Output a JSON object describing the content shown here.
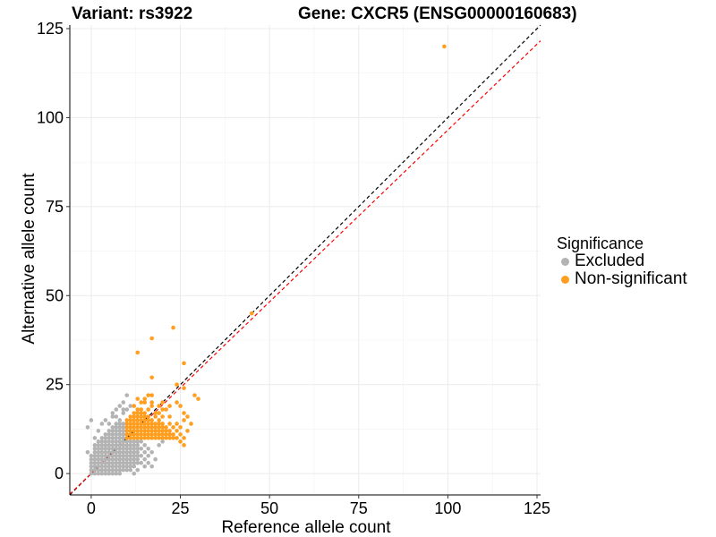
{
  "header": {
    "variant_title": "Variant: rs3922",
    "gene_title": "Gene: CXCR5 (ENSG00000160683)"
  },
  "legend": {
    "title": "Significance",
    "items": [
      {
        "label": "Excluded",
        "color": "#b3b3b3"
      },
      {
        "label": "Non-significant",
        "color": "#ff9e1f"
      }
    ]
  },
  "chart_data": {
    "type": "scatter",
    "xlabel": "Reference allele count",
    "ylabel": "Alternative allele count",
    "xlim": [
      -6,
      126
    ],
    "ylim": [
      -6,
      126
    ],
    "xticks": [
      0,
      25,
      50,
      75,
      100,
      125
    ],
    "yticks": [
      0,
      25,
      50,
      75,
      100,
      125
    ],
    "grid": true,
    "legend_position": "right",
    "reference_lines": [
      {
        "name": "identity",
        "slope": 1,
        "color": "#000000",
        "style": "dashed"
      },
      {
        "name": "fit",
        "slope": 0.965,
        "color": "#ff0000",
        "style": "dashed"
      }
    ],
    "series": [
      {
        "name": "Excluded",
        "color": "#b3b3b3",
        "points": [
          [
            0,
            0
          ],
          [
            0,
            1
          ],
          [
            0,
            2
          ],
          [
            0,
            3
          ],
          [
            0,
            4
          ],
          [
            0,
            5
          ],
          [
            1,
            0
          ],
          [
            1,
            1
          ],
          [
            1,
            2
          ],
          [
            1,
            3
          ],
          [
            1,
            4
          ],
          [
            1,
            5
          ],
          [
            1,
            6
          ],
          [
            1,
            7
          ],
          [
            1,
            8
          ],
          [
            2,
            0
          ],
          [
            2,
            1
          ],
          [
            2,
            2
          ],
          [
            2,
            3
          ],
          [
            2,
            4
          ],
          [
            2,
            5
          ],
          [
            2,
            6
          ],
          [
            2,
            7
          ],
          [
            2,
            8
          ],
          [
            2,
            9
          ],
          [
            3,
            0
          ],
          [
            3,
            1
          ],
          [
            3,
            2
          ],
          [
            3,
            3
          ],
          [
            3,
            4
          ],
          [
            3,
            5
          ],
          [
            3,
            6
          ],
          [
            3,
            7
          ],
          [
            3,
            8
          ],
          [
            3,
            9
          ],
          [
            3,
            10
          ],
          [
            4,
            0
          ],
          [
            4,
            1
          ],
          [
            4,
            2
          ],
          [
            4,
            3
          ],
          [
            4,
            4
          ],
          [
            4,
            5
          ],
          [
            4,
            6
          ],
          [
            4,
            7
          ],
          [
            4,
            8
          ],
          [
            4,
            9
          ],
          [
            4,
            10
          ],
          [
            4,
            11
          ],
          [
            5,
            0
          ],
          [
            5,
            1
          ],
          [
            5,
            2
          ],
          [
            5,
            3
          ],
          [
            5,
            4
          ],
          [
            5,
            5
          ],
          [
            5,
            6
          ],
          [
            5,
            7
          ],
          [
            5,
            8
          ],
          [
            5,
            9
          ],
          [
            5,
            10
          ],
          [
            5,
            11
          ],
          [
            5,
            12
          ],
          [
            6,
            0
          ],
          [
            6,
            1
          ],
          [
            6,
            2
          ],
          [
            6,
            3
          ],
          [
            6,
            4
          ],
          [
            6,
            5
          ],
          [
            6,
            6
          ],
          [
            6,
            7
          ],
          [
            6,
            8
          ],
          [
            6,
            9
          ],
          [
            6,
            10
          ],
          [
            6,
            11
          ],
          [
            6,
            12
          ],
          [
            6,
            13
          ],
          [
            7,
            0
          ],
          [
            7,
            1
          ],
          [
            7,
            2
          ],
          [
            7,
            3
          ],
          [
            7,
            4
          ],
          [
            7,
            5
          ],
          [
            7,
            6
          ],
          [
            7,
            7
          ],
          [
            7,
            8
          ],
          [
            7,
            9
          ],
          [
            7,
            10
          ],
          [
            7,
            11
          ],
          [
            7,
            12
          ],
          [
            7,
            13
          ],
          [
            7,
            14
          ],
          [
            8,
            0
          ],
          [
            8,
            1
          ],
          [
            8,
            2
          ],
          [
            8,
            3
          ],
          [
            8,
            4
          ],
          [
            8,
            5
          ],
          [
            8,
            6
          ],
          [
            8,
            7
          ],
          [
            8,
            8
          ],
          [
            8,
            9
          ],
          [
            8,
            10
          ],
          [
            8,
            11
          ],
          [
            8,
            12
          ],
          [
            8,
            13
          ],
          [
            8,
            14
          ],
          [
            8,
            15
          ],
          [
            9,
            1
          ],
          [
            9,
            2
          ],
          [
            9,
            3
          ],
          [
            9,
            4
          ],
          [
            9,
            5
          ],
          [
            9,
            6
          ],
          [
            9,
            7
          ],
          [
            9,
            8
          ],
          [
            9,
            9
          ],
          [
            9,
            10
          ],
          [
            9,
            11
          ],
          [
            9,
            12
          ],
          [
            9,
            13
          ],
          [
            9,
            14
          ],
          [
            10,
            1
          ],
          [
            10,
            2
          ],
          [
            10,
            3
          ],
          [
            10,
            4
          ],
          [
            10,
            5
          ],
          [
            10,
            6
          ],
          [
            10,
            7
          ],
          [
            10,
            8
          ],
          [
            10,
            9
          ],
          [
            11,
            2
          ],
          [
            11,
            3
          ],
          [
            11,
            4
          ],
          [
            11,
            5
          ],
          [
            11,
            6
          ],
          [
            11,
            7
          ],
          [
            11,
            8
          ],
          [
            11,
            9
          ],
          [
            12,
            2
          ],
          [
            12,
            3
          ],
          [
            12,
            4
          ],
          [
            12,
            5
          ],
          [
            12,
            6
          ],
          [
            12,
            7
          ],
          [
            12,
            8
          ],
          [
            12,
            9
          ],
          [
            13,
            3
          ],
          [
            13,
            4
          ],
          [
            13,
            5
          ],
          [
            13,
            6
          ],
          [
            13,
            7
          ],
          [
            13,
            8
          ],
          [
            13,
            9
          ],
          [
            14,
            3
          ],
          [
            14,
            5
          ],
          [
            14,
            7
          ],
          [
            14,
            9
          ],
          [
            15,
            4
          ],
          [
            15,
            6
          ],
          [
            15,
            8
          ],
          [
            16,
            5
          ],
          [
            16,
            7
          ],
          [
            17,
            6
          ],
          [
            17,
            2
          ],
          [
            -1,
            13
          ],
          [
            0,
            15
          ],
          [
            -1,
            6
          ],
          [
            1,
            10
          ],
          [
            2,
            12
          ],
          [
            3,
            14
          ],
          [
            4,
            15
          ],
          [
            5,
            14
          ],
          [
            6,
            16
          ],
          [
            7,
            18
          ],
          [
            8,
            19
          ],
          [
            9,
            20
          ],
          [
            10,
            22
          ],
          [
            7,
            16
          ],
          [
            9,
            17
          ],
          [
            10,
            18
          ],
          [
            11,
            19
          ],
          [
            6,
            17
          ],
          [
            9,
            18
          ],
          [
            13,
            1
          ],
          [
            15,
            2
          ],
          [
            16,
            3
          ],
          [
            18,
            4
          ],
          [
            19,
            8
          ],
          [
            20,
            9
          ],
          [
            11,
            1
          ],
          [
            12,
            0
          ]
        ]
      },
      {
        "name": "Non-significant",
        "color": "#ff9e1f",
        "points": [
          [
            10,
            10
          ],
          [
            10,
            11
          ],
          [
            10,
            12
          ],
          [
            10,
            13
          ],
          [
            10,
            14
          ],
          [
            10,
            15
          ],
          [
            11,
            10
          ],
          [
            11,
            11
          ],
          [
            11,
            12
          ],
          [
            11,
            13
          ],
          [
            11,
            14
          ],
          [
            11,
            15
          ],
          [
            11,
            16
          ],
          [
            12,
            10
          ],
          [
            12,
            11
          ],
          [
            12,
            12
          ],
          [
            12,
            13
          ],
          [
            12,
            14
          ],
          [
            12,
            15
          ],
          [
            12,
            16
          ],
          [
            12,
            17
          ],
          [
            13,
            10
          ],
          [
            13,
            11
          ],
          [
            13,
            12
          ],
          [
            13,
            13
          ],
          [
            13,
            14
          ],
          [
            13,
            15
          ],
          [
            13,
            16
          ],
          [
            13,
            17
          ],
          [
            14,
            10
          ],
          [
            14,
            11
          ],
          [
            14,
            12
          ],
          [
            14,
            13
          ],
          [
            14,
            14
          ],
          [
            14,
            15
          ],
          [
            14,
            16
          ],
          [
            14,
            17
          ],
          [
            14,
            18
          ],
          [
            15,
            10
          ],
          [
            15,
            11
          ],
          [
            15,
            12
          ],
          [
            15,
            13
          ],
          [
            15,
            14
          ],
          [
            15,
            15
          ],
          [
            15,
            16
          ],
          [
            15,
            17
          ],
          [
            16,
            10
          ],
          [
            16,
            11
          ],
          [
            16,
            12
          ],
          [
            16,
            13
          ],
          [
            16,
            14
          ],
          [
            16,
            15
          ],
          [
            16,
            16
          ],
          [
            17,
            10
          ],
          [
            17,
            11
          ],
          [
            17,
            12
          ],
          [
            17,
            13
          ],
          [
            17,
            14
          ],
          [
            17,
            15
          ],
          [
            18,
            10
          ],
          [
            18,
            11
          ],
          [
            18,
            12
          ],
          [
            18,
            13
          ],
          [
            18,
            14
          ],
          [
            18,
            16
          ],
          [
            19,
            10
          ],
          [
            19,
            11
          ],
          [
            19,
            12
          ],
          [
            19,
            13
          ],
          [
            19,
            14
          ],
          [
            19,
            15
          ],
          [
            20,
            10
          ],
          [
            20,
            11
          ],
          [
            20,
            12
          ],
          [
            20,
            13
          ],
          [
            20,
            14
          ],
          [
            21,
            10
          ],
          [
            21,
            11
          ],
          [
            21,
            12
          ],
          [
            21,
            13
          ],
          [
            22,
            10
          ],
          [
            22,
            11
          ],
          [
            22,
            12
          ],
          [
            22,
            14
          ],
          [
            23,
            10
          ],
          [
            23,
            11
          ],
          [
            23,
            13
          ],
          [
            24,
            10
          ],
          [
            24,
            12
          ],
          [
            25,
            9
          ],
          [
            25,
            11
          ],
          [
            26,
            8
          ],
          [
            26,
            10
          ],
          [
            24,
            14
          ],
          [
            27,
            16
          ],
          [
            26,
            17
          ],
          [
            25,
            19
          ],
          [
            24,
            20
          ],
          [
            20,
            16
          ],
          [
            19,
            17
          ],
          [
            18,
            17
          ],
          [
            16,
            18
          ],
          [
            17,
            19
          ],
          [
            15,
            20
          ],
          [
            14,
            20
          ],
          [
            15,
            21
          ],
          [
            17,
            20
          ],
          [
            13,
            21
          ],
          [
            16,
            22
          ],
          [
            17,
            22
          ],
          [
            12,
            19
          ],
          [
            13,
            18
          ],
          [
            20,
            18
          ],
          [
            21,
            18
          ],
          [
            22,
            19
          ],
          [
            22,
            16
          ],
          [
            19,
            19
          ],
          [
            20,
            20
          ],
          [
            17,
            27
          ],
          [
            30,
            21
          ],
          [
            29,
            22
          ],
          [
            26,
            31
          ],
          [
            26,
            24
          ],
          [
            24,
            25
          ],
          [
            23,
            41
          ],
          [
            17,
            38
          ],
          [
            13,
            34
          ],
          [
            45,
            45
          ],
          [
            99,
            120
          ],
          [
            28,
            14
          ],
          [
            26,
            15
          ],
          [
            25,
            13
          ],
          [
            27,
            12
          ]
        ]
      }
    ]
  }
}
